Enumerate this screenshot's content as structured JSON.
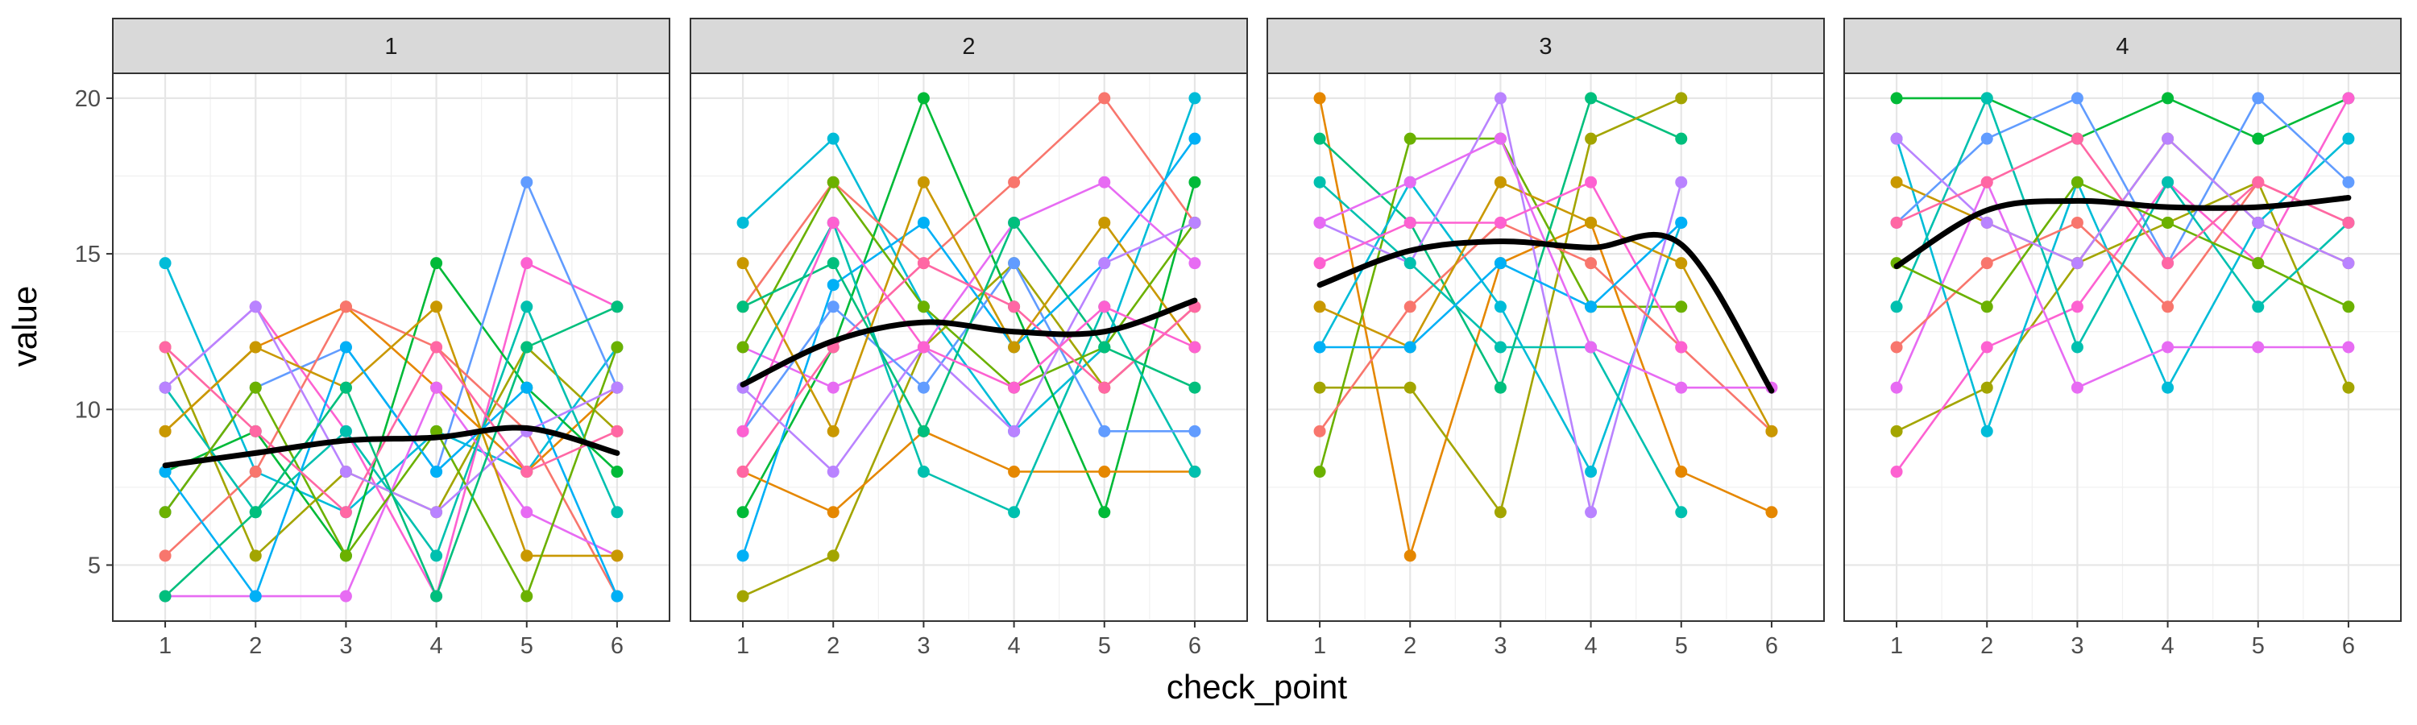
{
  "chart_data": {
    "type": "line",
    "xlabel": "check_point",
    "ylabel": "value",
    "x_ticks": [
      1,
      2,
      3,
      4,
      5,
      6
    ],
    "y_ticks": [
      5,
      10,
      15,
      20
    ],
    "xlim": [
      0.42,
      6.58
    ],
    "ylim": [
      3.2,
      20.8
    ],
    "grid": true,
    "legend": "none",
    "trend_color": "#000000",
    "palette": [
      "#F8766D",
      "#E58700",
      "#C99800",
      "#A3A500",
      "#6BB100",
      "#00BA38",
      "#00BF7D",
      "#00C0AF",
      "#00BCD8",
      "#00B0F6",
      "#619CFF",
      "#B983FF",
      "#E76BF3",
      "#FD61D1",
      "#FF67A4"
    ],
    "panels": [
      {
        "label": "1",
        "trend": {
          "x": [
            1,
            2,
            3,
            4,
            5,
            6
          ],
          "y": [
            8.2,
            8.6,
            9.0,
            9.1,
            9.4,
            8.6
          ]
        },
        "series": [
          {
            "color": "#00BCD8",
            "values": [
              14.7,
              8.0,
              6.7,
              9.3,
              8.0,
              12.0
            ]
          },
          {
            "color": "#FD61D1",
            "values": [
              10.7,
              13.3,
              9.3,
              4.0,
              14.7,
              13.3
            ]
          },
          {
            "color": "#E58700",
            "values": [
              9.3,
              12.0,
              13.3,
              10.7,
              8.0,
              10.7
            ]
          },
          {
            "color": "#00BA38",
            "values": [
              8.0,
              9.3,
              5.3,
              14.7,
              10.7,
              8.0
            ]
          },
          {
            "color": "#A3A500",
            "values": [
              12.0,
              5.3,
              8.0,
              6.7,
              12.0,
              9.3
            ]
          },
          {
            "color": "#619CFF",
            "values": [
              6.7,
              10.7,
              12.0,
              8.0,
              17.3,
              10.7
            ]
          },
          {
            "color": "#F8766D",
            "values": [
              5.3,
              8.0,
              13.3,
              12.0,
              9.3,
              4.0
            ]
          },
          {
            "color": "#E76BF3",
            "values": [
              4.0,
              4.0,
              4.0,
              10.7,
              6.7,
              5.3
            ]
          },
          {
            "color": "#00C0AF",
            "values": [
              10.7,
              6.7,
              9.3,
              5.3,
              13.3,
              6.7
            ]
          },
          {
            "color": "#C99800",
            "values": [
              9.3,
              12.0,
              10.7,
              13.3,
              5.3,
              5.3
            ]
          },
          {
            "color": "#6BB100",
            "values": [
              6.7,
              10.7,
              5.3,
              9.3,
              4.0,
              12.0
            ]
          },
          {
            "color": "#00B0F6",
            "values": [
              8.0,
              4.0,
              12.0,
              8.0,
              10.7,
              4.0
            ]
          },
          {
            "color": "#FF67A4",
            "values": [
              12.0,
              9.3,
              6.7,
              12.0,
              8.0,
              9.3
            ]
          },
          {
            "color": "#B983FF",
            "values": [
              10.7,
              13.3,
              8.0,
              6.7,
              9.3,
              10.7
            ]
          },
          {
            "color": "#00BF7D",
            "values": [
              4.0,
              6.7,
              10.7,
              4.0,
              12.0,
              13.3
            ]
          }
        ]
      },
      {
        "label": "2",
        "trend": {
          "x": [
            1,
            2,
            3,
            4,
            5,
            6
          ],
          "y": [
            10.8,
            12.2,
            12.8,
            12.5,
            12.5,
            13.5
          ]
        },
        "series": [
          {
            "color": "#00BCD8",
            "values": [
              16.0,
              18.7,
              13.3,
              9.3,
              12.0,
              20.0
            ]
          },
          {
            "color": "#A3A500",
            "values": [
              4.0,
              5.3,
              12.0,
              14.7,
              10.7,
              13.3
            ]
          },
          {
            "color": "#00BA38",
            "values": [
              6.7,
              12.0,
              20.0,
              13.3,
              6.7,
              17.3
            ]
          },
          {
            "color": "#F8766D",
            "values": [
              13.3,
              17.3,
              14.7,
              17.3,
              20.0,
              16.0
            ]
          },
          {
            "color": "#E58700",
            "values": [
              8.0,
              6.7,
              9.3,
              8.0,
              8.0,
              8.0
            ]
          },
          {
            "color": "#00B0F6",
            "values": [
              5.3,
              14.0,
              16.0,
              12.0,
              14.7,
              18.7
            ]
          },
          {
            "color": "#E76BF3",
            "values": [
              12.0,
              10.7,
              12.0,
              16.0,
              17.3,
              14.7
            ]
          },
          {
            "color": "#00C0AF",
            "values": [
              10.7,
              16.0,
              8.0,
              6.7,
              13.3,
              8.0
            ]
          },
          {
            "color": "#619CFF",
            "values": [
              9.3,
              13.3,
              10.7,
              14.7,
              9.3,
              9.3
            ]
          },
          {
            "color": "#C99800",
            "values": [
              14.7,
              9.3,
              17.3,
              12.0,
              16.0,
              12.0
            ]
          },
          {
            "color": "#6BB100",
            "values": [
              12.0,
              17.3,
              13.3,
              10.7,
              12.0,
              16.0
            ]
          },
          {
            "color": "#FF67A4",
            "values": [
              8.0,
              12.0,
              14.7,
              13.3,
              10.7,
              13.3
            ]
          },
          {
            "color": "#B983FF",
            "values": [
              10.7,
              8.0,
              12.0,
              9.3,
              14.7,
              16.0
            ]
          },
          {
            "color": "#00BF7D",
            "values": [
              13.3,
              14.7,
              9.3,
              16.0,
              12.0,
              10.7
            ]
          },
          {
            "color": "#FD61D1",
            "values": [
              9.3,
              16.0,
              12.0,
              10.7,
              13.3,
              12.0
            ]
          }
        ]
      },
      {
        "label": "3",
        "trend": {
          "x": [
            1,
            2,
            3,
            4,
            5,
            6
          ],
          "y": [
            14.0,
            15.1,
            15.4,
            15.2,
            15.3,
            10.6
          ]
        },
        "series": [
          {
            "color": "#E58700",
            "values": [
              20.0,
              5.3,
              14.7,
              16.0,
              8.0,
              6.7
            ]
          },
          {
            "color": "#00BF7D",
            "values": [
              18.7,
              16.0,
              10.7,
              20.0,
              18.7
            ]
          },
          {
            "color": "#A3A500",
            "values": [
              10.7,
              10.7,
              6.7,
              18.7,
              20.0
            ]
          },
          {
            "color": "#6BB100",
            "values": [
              8.0,
              18.7,
              18.7,
              13.3,
              13.3
            ]
          },
          {
            "color": "#00BCD8",
            "values": [
              12.0,
              17.3,
              13.3,
              8.0,
              16.0
            ]
          },
          {
            "color": "#B983FF",
            "values": [
              16.0,
              14.7,
              20.0,
              6.7,
              17.3
            ]
          },
          {
            "color": "#F8766D",
            "values": [
              9.3,
              13.3,
              16.0,
              14.7,
              12.0,
              9.3
            ]
          },
          {
            "color": "#C99800",
            "values": [
              13.3,
              12.0,
              17.3,
              16.0,
              14.7,
              9.3
            ]
          },
          {
            "color": "#00C0AF",
            "values": [
              17.3,
              14.7,
              12.0,
              12.0,
              6.7
            ]
          },
          {
            "color": "#FD61D1",
            "values": [
              14.7,
              16.0,
              16.0,
              17.3,
              12.0
            ]
          },
          {
            "color": "#00B0F6",
            "values": [
              12.0,
              12.0,
              14.7,
              13.3,
              16.0
            ]
          },
          {
            "color": "#E76BF3",
            "values": [
              16.0,
              17.3,
              18.7,
              12.0,
              10.7,
              10.7
            ]
          }
        ]
      },
      {
        "label": "4",
        "trend": {
          "x": [
            1,
            2,
            3,
            4,
            5,
            6
          ],
          "y": [
            14.6,
            16.4,
            16.7,
            16.5,
            16.5,
            16.8
          ]
        },
        "series": [
          {
            "color": "#00BA38",
            "values": [
              20.0,
              20.0,
              18.7,
              20.0,
              18.7,
              20.0
            ]
          },
          {
            "color": "#A3A500",
            "values": [
              9.3,
              10.7,
              14.7,
              16.0,
              17.3,
              10.7
            ]
          },
          {
            "color": "#FD61D1",
            "values": [
              8.0,
              12.0,
              13.3,
              17.3,
              14.7,
              20.0
            ]
          },
          {
            "color": "#00BCD8",
            "values": [
              18.7,
              9.3,
              17.3,
              10.7,
              16.0,
              18.7
            ]
          },
          {
            "color": "#E76BF3",
            "values": [
              10.7,
              17.3,
              10.7,
              12.0,
              12.0,
              12.0
            ]
          },
          {
            "color": "#C99800",
            "values": [
              17.3,
              16.0,
              14.7,
              18.7,
              16.0,
              14.7
            ]
          },
          {
            "color": "#619CFF",
            "values": [
              16.0,
              18.7,
              20.0,
              14.7,
              20.0,
              17.3
            ]
          },
          {
            "color": "#F8766D",
            "values": [
              12.0,
              14.7,
              16.0,
              13.3,
              17.3,
              16.0
            ]
          },
          {
            "color": "#00C0AF",
            "values": [
              13.3,
              20.0,
              12.0,
              17.3,
              13.3,
              16.0
            ]
          },
          {
            "color": "#6BB100",
            "values": [
              14.7,
              13.3,
              17.3,
              16.0,
              14.7,
              13.3
            ]
          },
          {
            "color": "#B983FF",
            "values": [
              18.7,
              16.0,
              14.7,
              18.7,
              16.0,
              14.7
            ]
          },
          {
            "color": "#FF67A4",
            "values": [
              16.0,
              17.3,
              18.7,
              14.7,
              17.3,
              16.0
            ]
          }
        ]
      }
    ]
  }
}
